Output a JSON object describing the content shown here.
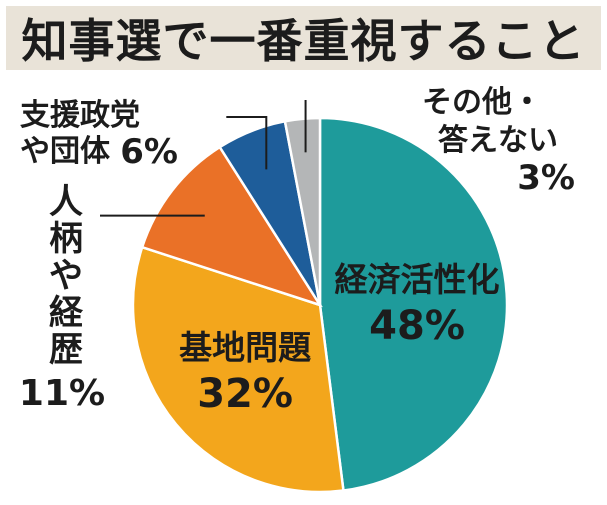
{
  "chart_data": {
    "type": "pie",
    "title": "知事選で一番重視すること",
    "slices": [
      {
        "label": "経済活性化",
        "value": 48,
        "value_label": "48%",
        "color": "#1e9b9b"
      },
      {
        "label": "基地問題",
        "value": 32,
        "value_label": "32%",
        "color": "#f3a61c"
      },
      {
        "label_lines": [
          "人",
          "柄",
          "や",
          "経",
          "歴"
        ],
        "value": 11,
        "value_label": "11%",
        "color": "#ea7127"
      },
      {
        "label_lines": [
          "支援政党",
          "や団体"
        ],
        "value": 6,
        "value_label": "6%",
        "color": "#1e5d9a"
      },
      {
        "label_lines": [
          "その他・",
          "答えない"
        ],
        "value": 3,
        "value_label": "3%",
        "color": "#b4b6b7"
      }
    ]
  }
}
